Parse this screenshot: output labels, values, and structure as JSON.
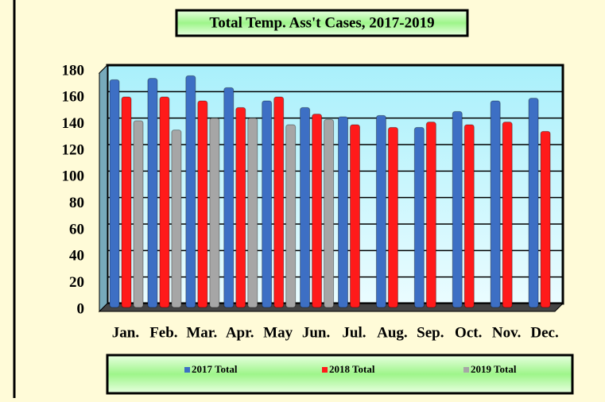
{
  "chart_data": {
    "type": "bar",
    "title": "Total Temp. Ass't Cases, 2017-2019",
    "categories": [
      "Jan.",
      "Feb.",
      "Mar.",
      "Apr.",
      "May",
      "Jun.",
      "Jul.",
      "Aug.",
      "Sep.",
      "Oct.",
      "Nov.",
      "Dec."
    ],
    "series": [
      {
        "name": "2017 Total",
        "color": "#3d6fc4",
        "values": [
          172,
          173,
          175,
          166,
          156,
          151,
          144,
          145,
          136,
          148,
          156,
          158
        ]
      },
      {
        "name": "2018 Total",
        "color": "#ff1a1a",
        "values": [
          159,
          159,
          156,
          151,
          159,
          146,
          138,
          136,
          140,
          138,
          140,
          133
        ]
      },
      {
        "name": "2019 Total",
        "color": "#a6a6a6",
        "values": [
          141,
          134,
          143,
          143,
          138,
          142,
          null,
          null,
          null,
          null,
          null,
          null
        ]
      }
    ],
    "ylim": [
      0,
      180
    ],
    "yticks": [
      0,
      20,
      40,
      60,
      80,
      100,
      120,
      140,
      160,
      180
    ],
    "grid": true,
    "legend": "bottom"
  }
}
